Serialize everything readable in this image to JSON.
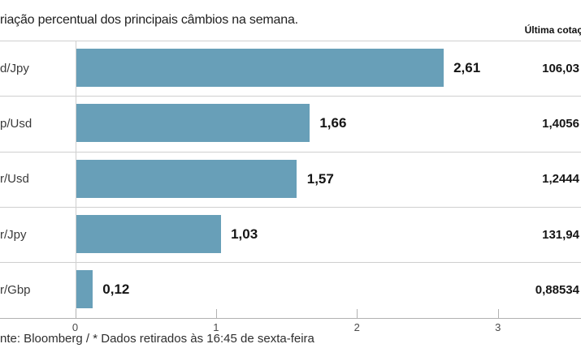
{
  "title": "riação percentual dos principais câmbios na semana.",
  "header": {
    "last_quote_label": "Última cotaç"
  },
  "footer": "nte: Bloomberg / * Dados retirados às 16:45 de sexta-feira",
  "colors": {
    "bar": "#689fb8",
    "separator": "#cfcfcf",
    "axis": "#b2b2b2",
    "text": "#151515"
  },
  "chart_data": {
    "type": "bar",
    "orientation": "horizontal",
    "title": "riação percentual dos principais câmbios na semana.",
    "categories": [
      "d/Jpy",
      "p/Usd",
      "r/Usd",
      "r/Jpy",
      "r/Gbp"
    ],
    "values": [
      2.61,
      1.66,
      1.57,
      1.03,
      0.12
    ],
    "value_labels": [
      "2,61",
      "1,66",
      "1,57",
      "1,03",
      "0,12"
    ],
    "last_quotes": [
      "106,03",
      "1,4056",
      "1,2444",
      "131,94",
      "0,88534"
    ],
    "x_ticks": [
      0,
      1,
      2,
      3
    ],
    "x_tick_labels": [
      "0",
      "1",
      "2",
      "3"
    ],
    "xlim": [
      0,
      3.59
    ],
    "grid": false,
    "legend": "none",
    "source_note": "nte: Bloomberg / * Dados retirados às 16:45 de sexta-feira"
  }
}
